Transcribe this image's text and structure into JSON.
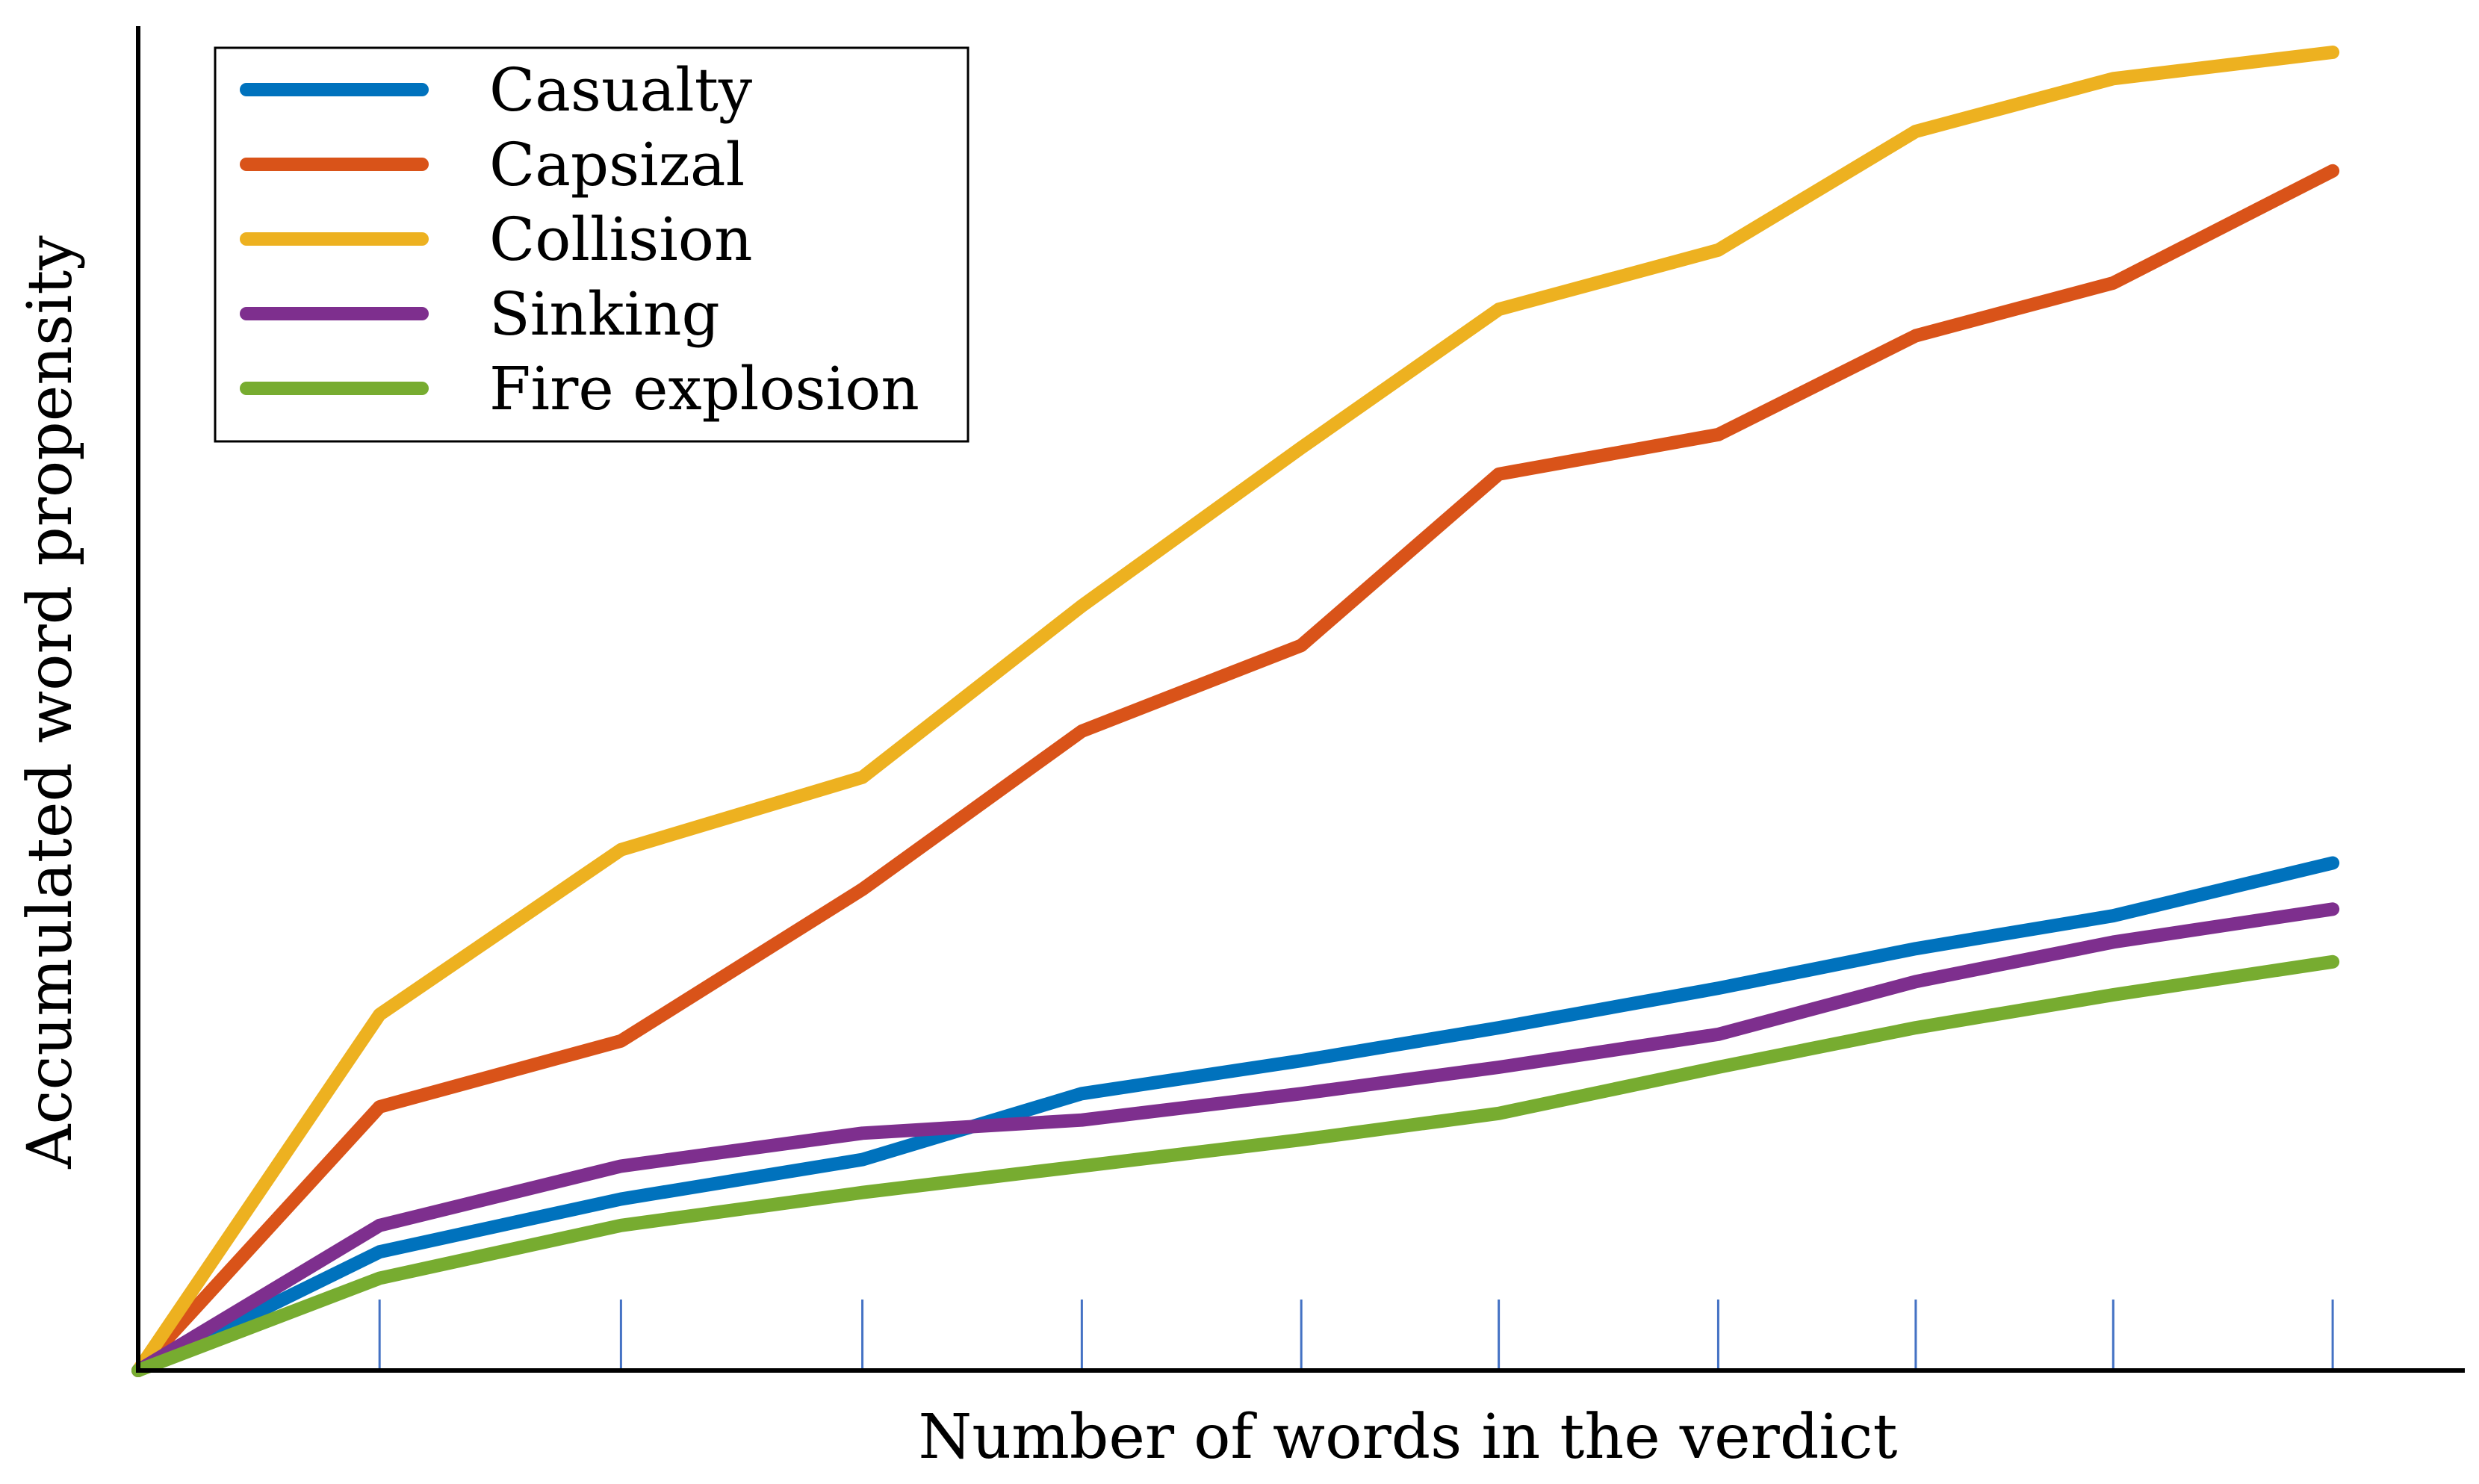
{
  "chart_data": {
    "type": "line",
    "title": "",
    "xlabel": "Number of words in the verdict",
    "ylabel": "Accumulated word propensity",
    "x_tick_labels_shown": false,
    "y_tick_labels_shown": false,
    "grid": false,
    "legend_position": "top-left",
    "xlim": [
      0,
      10.5
    ],
    "ylim": [
      0,
      100
    ],
    "series": [
      {
        "name": "Casualty",
        "color": "#0072bd",
        "x": [
          0,
          1.1,
          2.2,
          3.3,
          4.3,
          5.3,
          6.2,
          7.2,
          8.1,
          9.0,
          10.0
        ],
        "y": [
          0,
          9,
          13,
          16,
          21,
          23.5,
          26,
          29,
          32,
          34.5,
          38.5
        ]
      },
      {
        "name": "Capsizal",
        "color": "#d95319",
        "x": [
          0,
          1.1,
          2.2,
          3.3,
          4.3,
          5.3,
          6.2,
          7.2,
          8.1,
          9.0,
          10.0
        ],
        "y": [
          0,
          20,
          25,
          36.5,
          48.5,
          55,
          68,
          71,
          78.5,
          82.5,
          91
        ]
      },
      {
        "name": "Collision",
        "color": "#edb120",
        "x": [
          0,
          1.1,
          2.2,
          3.3,
          4.3,
          5.3,
          6.2,
          7.2,
          8.1,
          9.0,
          10.0
        ],
        "y": [
          0,
          27,
          39.5,
          45,
          58,
          70,
          80.5,
          85,
          94,
          98,
          100
        ]
      },
      {
        "name": "Sinking",
        "color": "#7e2f8e",
        "x": [
          0,
          1.1,
          2.2,
          3.3,
          4.3,
          5.3,
          6.2,
          7.2,
          8.1,
          9.0,
          10.0
        ],
        "y": [
          0,
          11,
          15.5,
          18,
          19,
          21,
          23,
          25.5,
          29.5,
          32.5,
          35
        ]
      },
      {
        "name": "Fire explosion",
        "color": "#77ac30",
        "x": [
          0,
          1.1,
          2.2,
          3.3,
          4.3,
          5.3,
          6.2,
          7.2,
          8.1,
          9.0,
          10.0
        ],
        "y": [
          0,
          7,
          11,
          13.5,
          15.5,
          17.5,
          19.5,
          23,
          26,
          28.5,
          31
        ]
      }
    ],
    "tick_positions": [
      1.1,
      2.2,
      3.3,
      4.3,
      5.3,
      6.2,
      7.2,
      8.1,
      9.0,
      10.0
    ]
  }
}
